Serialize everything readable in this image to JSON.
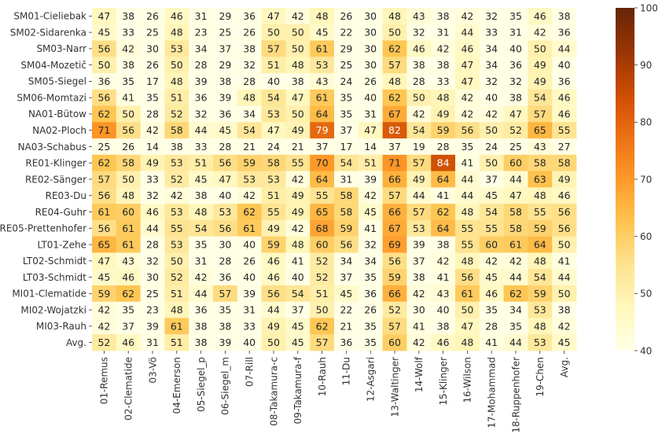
{
  "chart_data": {
    "type": "heatmap",
    "title": "",
    "xlabel": "",
    "ylabel": "",
    "colormap": "YlOrBr",
    "colors": {
      "stops": [
        "#ffffe5",
        "#fff7bc",
        "#fee391",
        "#fec44f",
        "#fe9929",
        "#ec7014",
        "#cc4c02",
        "#993404",
        "#662506"
      ],
      "text_dark": "#262626",
      "text_light": "#ffffff"
    },
    "vmin": 40,
    "vmax": 100,
    "colorbar_ticks": [
      "40",
      "50",
      "60",
      "70",
      "80",
      "90",
      "100"
    ],
    "colorbar_values": [
      40,
      50,
      60,
      70,
      80,
      90,
      100
    ],
    "rows": [
      "SM01-Cieliebak",
      "SM02-Sidarenka",
      "SM03-Narr",
      "SM04-Mozetič",
      "SM05-Siegel",
      "SM06-Momtazi",
      "NA01-Bütow",
      "NA02-Ploch",
      "NA03-Schabus",
      "RE01-Klinger",
      "RE02-Sänger",
      "RE03-Du",
      "RE04-Guhr",
      "RE05-Prettenhofer",
      "LT01-Zehe",
      "LT02-Schmidt",
      "LT03-Schmidt",
      "MI01-Clematide",
      "MI02-Wojatzki",
      "MI03-Rauh",
      "Avg."
    ],
    "columns": [
      "01-Remus",
      "02-Clematide",
      "03-Vö",
      "04-Emerson",
      "05-Siegel_p",
      "06-Siegel_m",
      "07-Rill",
      "08-Takamura-c",
      "09-Takamura-f",
      "10-Rauh",
      "11-Du",
      "12-Asgari",
      "13-Waltinger",
      "14-Wolf",
      "15-Klinger",
      "16-Wilson",
      "17-Mohammad",
      "18-Ruppenhofer",
      "19-Chen",
      "Avg."
    ],
    "values": [
      [
        47,
        38,
        26,
        46,
        31,
        29,
        36,
        47,
        42,
        48,
        26,
        30,
        48,
        43,
        38,
        42,
        32,
        35,
        46,
        38
      ],
      [
        45,
        33,
        25,
        48,
        23,
        25,
        26,
        50,
        50,
        45,
        22,
        30,
        50,
        32,
        31,
        44,
        33,
        31,
        42,
        36
      ],
      [
        56,
        42,
        30,
        53,
        34,
        37,
        38,
        57,
        50,
        61,
        29,
        30,
        62,
        46,
        42,
        46,
        34,
        40,
        50,
        44
      ],
      [
        50,
        38,
        26,
        50,
        28,
        29,
        32,
        51,
        48,
        53,
        25,
        30,
        57,
        38,
        38,
        47,
        34,
        36,
        49,
        40
      ],
      [
        36,
        35,
        17,
        48,
        39,
        38,
        28,
        40,
        38,
        43,
        24,
        26,
        48,
        28,
        33,
        47,
        32,
        32,
        49,
        36
      ],
      [
        56,
        41,
        35,
        51,
        36,
        39,
        48,
        54,
        47,
        61,
        35,
        40,
        62,
        50,
        48,
        42,
        40,
        38,
        54,
        46
      ],
      [
        62,
        50,
        28,
        52,
        32,
        36,
        34,
        53,
        50,
        64,
        35,
        31,
        67,
        42,
        49,
        42,
        42,
        47,
        57,
        46
      ],
      [
        71,
        56,
        42,
        58,
        44,
        45,
        54,
        47,
        49,
        79,
        37,
        47,
        82,
        54,
        59,
        56,
        50,
        52,
        65,
        55
      ],
      [
        25,
        26,
        14,
        38,
        33,
        28,
        21,
        24,
        21,
        37,
        17,
        14,
        37,
        19,
        28,
        35,
        24,
        25,
        43,
        27
      ],
      [
        62,
        58,
        49,
        53,
        51,
        56,
        59,
        58,
        55,
        70,
        54,
        51,
        71,
        57,
        84,
        41,
        50,
        60,
        58,
        58
      ],
      [
        57,
        50,
        33,
        52,
        45,
        47,
        53,
        53,
        42,
        64,
        31,
        39,
        66,
        49,
        64,
        44,
        37,
        44,
        63,
        49
      ],
      [
        56,
        48,
        32,
        42,
        38,
        40,
        42,
        51,
        49,
        55,
        58,
        42,
        57,
        44,
        41,
        44,
        45,
        47,
        48,
        46
      ],
      [
        61,
        60,
        46,
        53,
        48,
        53,
        62,
        55,
        49,
        65,
        58,
        45,
        66,
        57,
        62,
        48,
        54,
        58,
        55,
        56
      ],
      [
        56,
        61,
        44,
        55,
        54,
        56,
        61,
        49,
        42,
        68,
        59,
        41,
        67,
        53,
        64,
        55,
        55,
        58,
        59,
        56
      ],
      [
        65,
        61,
        28,
        53,
        35,
        30,
        40,
        59,
        48,
        60,
        56,
        32,
        69,
        39,
        38,
        55,
        60,
        61,
        64,
        50
      ],
      [
        47,
        43,
        32,
        50,
        31,
        28,
        26,
        46,
        41,
        52,
        34,
        34,
        56,
        37,
        42,
        48,
        42,
        42,
        48,
        41
      ],
      [
        45,
        46,
        30,
        52,
        42,
        36,
        40,
        46,
        40,
        52,
        37,
        35,
        59,
        38,
        41,
        56,
        45,
        44,
        54,
        44
      ],
      [
        59,
        62,
        25,
        51,
        44,
        57,
        39,
        56,
        54,
        51,
        45,
        36,
        66,
        42,
        43,
        61,
        46,
        62,
        59,
        50
      ],
      [
        42,
        35,
        23,
        48,
        36,
        35,
        31,
        44,
        37,
        50,
        22,
        26,
        52,
        30,
        40,
        50,
        35,
        34,
        53,
        38
      ],
      [
        42,
        37,
        39,
        61,
        38,
        38,
        33,
        49,
        45,
        62,
        21,
        35,
        57,
        41,
        38,
        47,
        28,
        35,
        48,
        42
      ],
      [
        52,
        46,
        31,
        51,
        38,
        39,
        40,
        50,
        45,
        57,
        36,
        35,
        60,
        42,
        46,
        48,
        41,
        44,
        53,
        45
      ]
    ]
  }
}
